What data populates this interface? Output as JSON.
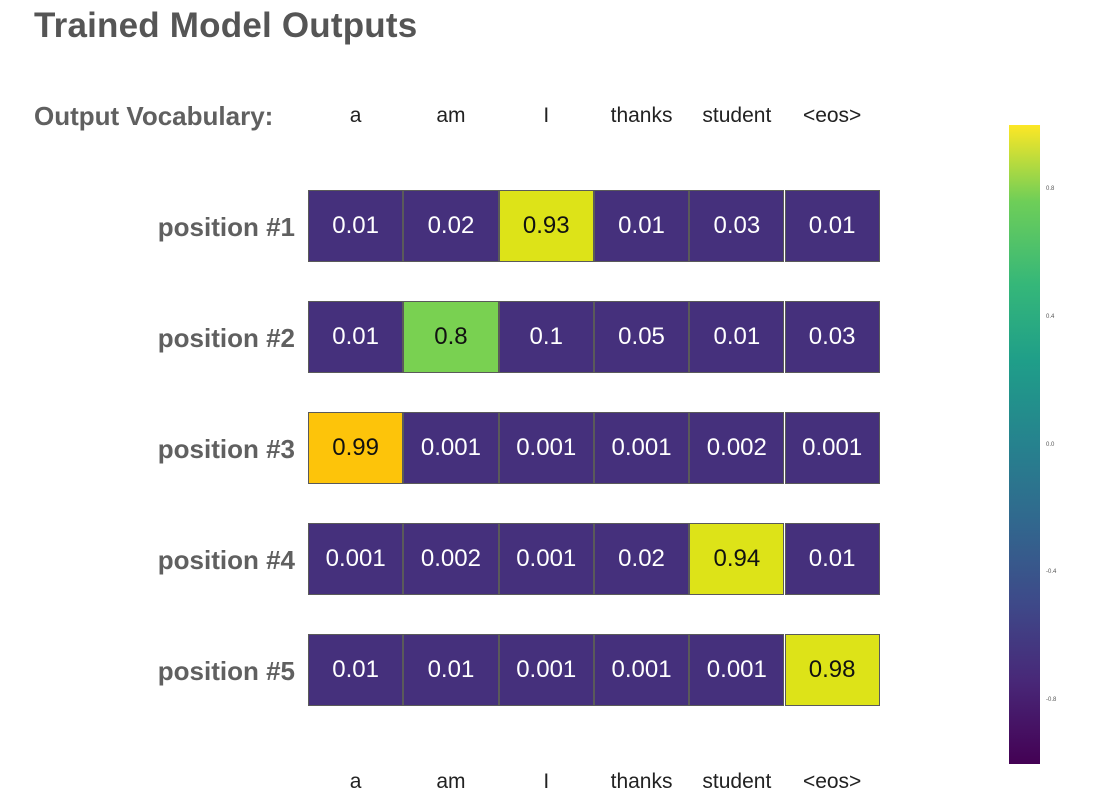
{
  "title": "Trained Model Outputs",
  "vocab_label": "Output Vocabulary:",
  "chart_data": {
    "type": "heatmap",
    "title": "Trained Model Outputs",
    "columns": [
      "a",
      "am",
      "I",
      "thanks",
      "student",
      "<eos>"
    ],
    "rows": [
      "position #1",
      "position #2",
      "position #3",
      "position #4",
      "position #5"
    ],
    "values": [
      [
        "0.01",
        "0.02",
        "0.93",
        "0.01",
        "0.03",
        "0.01"
      ],
      [
        "0.01",
        "0.8",
        "0.1",
        "0.05",
        "0.01",
        "0.03"
      ],
      [
        "0.99",
        "0.001",
        "0.001",
        "0.001",
        "0.002",
        "0.001"
      ],
      [
        "0.001",
        "0.002",
        "0.001",
        "0.02",
        "0.94",
        "0.01"
      ],
      [
        "0.01",
        "0.01",
        "0.001",
        "0.001",
        "0.001",
        "0.98"
      ]
    ],
    "colorbar": {
      "ticks": [
        "0.8",
        "0.4",
        "0.0",
        "-0.4",
        "-0.8"
      ],
      "range": [
        -1,
        1
      ],
      "colormap": "viridis"
    },
    "colors": {
      "low": "#45307c",
      "mid": "#79d151",
      "high_yellow": "#dde318",
      "peak_orange": "#fdc40a"
    }
  }
}
